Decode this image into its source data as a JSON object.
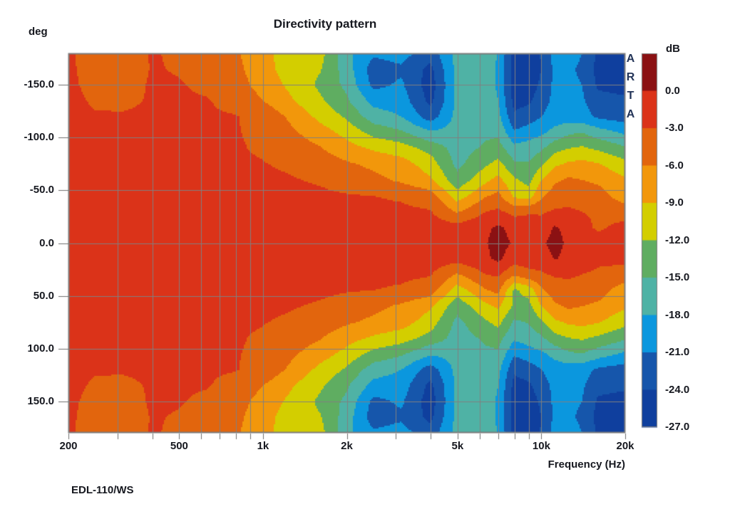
{
  "title": "Directivity pattern",
  "branding": "ARTA",
  "footer_label": "EDL-110/WS",
  "y_axis": {
    "unit_label": "deg",
    "ticks": [
      {
        "value": -150,
        "label": "-150.0"
      },
      {
        "value": -100,
        "label": "-100.0"
      },
      {
        "value": -50,
        "label": "-50.0"
      },
      {
        "value": 0,
        "label": "0.0"
      },
      {
        "value": 50,
        "label": "50.0"
      },
      {
        "value": 100,
        "label": "100.0"
      },
      {
        "value": 150,
        "label": "150.0"
      }
    ]
  },
  "x_axis": {
    "label": "Frequency (Hz)",
    "ticks": [
      {
        "value": 200,
        "label": "200"
      },
      {
        "value": 500,
        "label": "500"
      },
      {
        "value": 1000,
        "label": "1k"
      },
      {
        "value": 2000,
        "label": "2k"
      },
      {
        "value": 5000,
        "label": "5k"
      },
      {
        "value": 10000,
        "label": "10k"
      },
      {
        "value": 20000,
        "label": "20k"
      }
    ]
  },
  "colorbar": {
    "unit_label": "dB",
    "tick_labels": [
      "0.0",
      "-3.0",
      "-6.0",
      "-9.0",
      "-12.0",
      "-15.0",
      "-18.0",
      "-21.0",
      "-24.0",
      "-27.0"
    ],
    "band_colors": [
      "#8B1113",
      "#DB3319",
      "#E2650D",
      "#F2970B",
      "#D3CE00",
      "#5FAD61",
      "#4FB2A5",
      "#0B97DE",
      "#1656AB",
      "#0F3F9E"
    ],
    "band_thresholds_db": [
      0,
      -3,
      -6,
      -9,
      -12,
      -15,
      -18,
      -21,
      -24
    ]
  },
  "chart_data": {
    "type": "heatmap",
    "title": "Directivity pattern",
    "xlabel": "Frequency (Hz)",
    "ylabel": "deg",
    "x_scale": "log",
    "x_range_hz": [
      200,
      20000
    ],
    "y_range_deg": [
      -180,
      180
    ],
    "grid": true,
    "gridline_freqs_hz": [
      300,
      400,
      500,
      600,
      700,
      800,
      900,
      1000,
      2000,
      3000,
      4000,
      5000,
      6000,
      7000,
      8000,
      9000,
      10000
    ],
    "gridline_angles_deg": [
      -150,
      -100,
      -50,
      0,
      50,
      100,
      150
    ],
    "value_unit": "dB",
    "freqs_hz": [
      200,
      250,
      315,
      400,
      500,
      630,
      800,
      1000,
      1250,
      1600,
      2000,
      2500,
      3150,
      4000,
      5000,
      6300,
      7000,
      8000,
      9000,
      10000,
      11200,
      12500,
      14000,
      16000,
      20000
    ],
    "angles_deg": [
      -180,
      -165,
      -150,
      -135,
      -120,
      -105,
      -90,
      -75,
      -60,
      -45,
      -30,
      -15,
      0,
      15,
      30,
      45,
      60,
      75,
      90,
      105,
      120,
      135,
      150,
      165,
      180
    ],
    "values_db": [
      [
        -2.8,
        -3.6,
        -3.7,
        -2.9,
        -3.2,
        -3.9,
        -5.6,
        -8.2,
        -10.4,
        -10.9,
        -17.3,
        -20.5,
        -19.8,
        -22.8,
        -16.8,
        -16.3,
        -18.2,
        -25.0,
        -25.5,
        -23.8,
        -19.8,
        -19.8,
        -21.0,
        -24.5,
        -25.0
      ],
      [
        -2.7,
        -3.7,
        -3.8,
        -2.9,
        -3.1,
        -3.7,
        -5.2,
        -8.0,
        -10.2,
        -11.8,
        -16.5,
        -22.5,
        -21.5,
        -24.8,
        -17.0,
        -16.5,
        -18.4,
        -25.5,
        -26.0,
        -24.0,
        -20.2,
        -20.5,
        -21.5,
        -25.0,
        -25.5
      ],
      [
        -2.6,
        -3.6,
        -3.7,
        -2.8,
        -2.9,
        -3.3,
        -4.6,
        -7.3,
        -9.6,
        -12.6,
        -15.8,
        -21.8,
        -20.5,
        -25.6,
        -17.2,
        -16.5,
        -18.4,
        -25.5,
        -25.5,
        -23.5,
        -20.2,
        -20.3,
        -21.0,
        -24.5,
        -25.0
      ],
      [
        -2.4,
        -3.3,
        -3.4,
        -2.8,
        -2.8,
        -2.9,
        -3.6,
        -6.0,
        -8.6,
        -11.5,
        -14.5,
        -19.0,
        -19.5,
        -24.8,
        -17.2,
        -16.3,
        -18.0,
        -25.0,
        -24.5,
        -22.5,
        -20.0,
        -20.0,
        -20.5,
        -23.0,
        -23.5
      ],
      [
        -2.2,
        -2.8,
        -2.8,
        -2.6,
        -2.7,
        -2.8,
        -2.9,
        -3.8,
        -6.5,
        -9.8,
        -12.5,
        -16.5,
        -18.0,
        -22.5,
        -17.0,
        -16.2,
        -17.0,
        -23.5,
        -22.5,
        -21.0,
        -19.5,
        -19.5,
        -19.8,
        -21.5,
        -22.5
      ],
      [
        -2.0,
        -2.4,
        -2.5,
        -2.4,
        -2.6,
        -2.8,
        -2.9,
        -3.4,
        -5.4,
        -7.6,
        -10.0,
        -13.0,
        -14.5,
        -17.5,
        -16.8,
        -15.6,
        -15.5,
        -20.5,
        -19.5,
        -18.5,
        -17.0,
        -15.5,
        -15.0,
        -16.5,
        -18.5
      ],
      [
        -1.8,
        -2.0,
        -2.1,
        -2.2,
        -2.4,
        -2.6,
        -2.8,
        -3.3,
        -4.2,
        -5.8,
        -7.8,
        -9.4,
        -10.6,
        -13.0,
        -16.3,
        -14.5,
        -13.8,
        -17.0,
        -16.5,
        -15.5,
        -13.0,
        -12.0,
        -11.5,
        -12.5,
        -14.5
      ],
      [
        -1.6,
        -1.8,
        -1.9,
        -2.0,
        -2.1,
        -2.3,
        -2.6,
        -2.9,
        -3.4,
        -4.3,
        -5.6,
        -6.6,
        -7.6,
        -10.5,
        -15.8,
        -12.5,
        -11.0,
        -14.5,
        -14.8,
        -12.5,
        -9.5,
        -8.5,
        -8.0,
        -8.8,
        -11.0
      ],
      [
        -1.4,
        -1.6,
        -1.7,
        -1.8,
        -1.9,
        -2.0,
        -2.2,
        -2.4,
        -2.8,
        -3.3,
        -4.2,
        -5.2,
        -6.5,
        -8.5,
        -14.0,
        -9.7,
        -8.0,
        -11.5,
        -13.0,
        -9.0,
        -6.5,
        -5.5,
        -6.0,
        -6.5,
        -8.5
      ],
      [
        -1.2,
        -1.4,
        -1.5,
        -1.6,
        -1.7,
        -1.8,
        -1.9,
        -2.0,
        -2.2,
        -2.5,
        -2.8,
        -3.0,
        -3.4,
        -4.5,
        -10.5,
        -6.3,
        -5.2,
        -9.5,
        -10.5,
        -6.5,
        -4.5,
        -4.0,
        -4.2,
        -4.8,
        -7.5
      ],
      [
        -1.1,
        -1.2,
        -1.3,
        -1.4,
        -1.4,
        -1.5,
        -1.6,
        -1.7,
        -1.8,
        -2.0,
        -2.1,
        -2.2,
        -2.4,
        -2.8,
        -6.3,
        -3.0,
        -2.4,
        -4.0,
        -3.4,
        -3.4,
        -2.6,
        -2.6,
        -3.0,
        -3.4,
        -4.5
      ],
      [
        -1.0,
        -1.1,
        -1.1,
        -1.2,
        -1.2,
        -1.2,
        -1.3,
        -1.3,
        -1.4,
        -1.5,
        -1.5,
        -1.6,
        -1.6,
        -1.5,
        -1.8,
        -0.5,
        0.4,
        -0.8,
        -1.2,
        -1.5,
        0.3,
        -0.8,
        -2.0,
        -3.5,
        -2.0
      ],
      [
        -1.0,
        -1.0,
        -1.0,
        -1.0,
        -1.0,
        -1.0,
        -1.0,
        -1.0,
        -1.1,
        -1.2,
        -1.2,
        -1.2,
        -1.2,
        -1.1,
        -1.0,
        -0.2,
        1.0,
        -0.3,
        -0.8,
        -0.5,
        1.0,
        -0.5,
        -1.2,
        -1.5,
        -1.2
      ],
      [
        -1.0,
        -1.1,
        -1.1,
        -1.2,
        -1.2,
        -1.2,
        -1.3,
        -1.3,
        -1.4,
        -1.5,
        -1.5,
        -1.6,
        -1.6,
        -1.5,
        -1.8,
        -0.5,
        0.6,
        -1.5,
        -1.2,
        -1.5,
        0.2,
        -0.8,
        -1.8,
        -2.5,
        -2.0
      ],
      [
        -1.1,
        -1.2,
        -1.3,
        -1.4,
        -1.4,
        -1.5,
        -1.6,
        -1.7,
        -1.8,
        -2.0,
        -2.1,
        -2.2,
        -2.4,
        -2.8,
        -6.3,
        -3.0,
        -2.6,
        -5.5,
        -4.0,
        -3.4,
        -2.6,
        -2.6,
        -3.0,
        -3.4,
        -4.5
      ],
      [
        -1.2,
        -1.4,
        -1.5,
        -1.6,
        -1.7,
        -1.8,
        -1.9,
        -2.0,
        -2.2,
        -2.5,
        -2.8,
        -3.0,
        -3.4,
        -4.5,
        -10.5,
        -6.3,
        -5.2,
        -12.5,
        -11.0,
        -6.5,
        -4.5,
        -4.0,
        -4.2,
        -4.8,
        -7.5
      ],
      [
        -1.4,
        -1.6,
        -1.7,
        -1.8,
        -1.9,
        -2.0,
        -2.2,
        -2.4,
        -2.8,
        -3.3,
        -4.2,
        -5.2,
        -6.5,
        -8.5,
        -14.0,
        -9.7,
        -8.5,
        -12.5,
        -13.0,
        -9.0,
        -6.5,
        -5.5,
        -6.0,
        -6.5,
        -8.5
      ],
      [
        -1.6,
        -1.8,
        -1.9,
        -2.0,
        -2.1,
        -2.3,
        -2.6,
        -2.9,
        -3.4,
        -4.3,
        -5.6,
        -6.6,
        -7.6,
        -10.5,
        -15.8,
        -12.5,
        -11.0,
        -15.5,
        -14.8,
        -12.5,
        -9.5,
        -8.5,
        -8.0,
        -8.8,
        -11.0
      ],
      [
        -1.8,
        -2.0,
        -2.1,
        -2.2,
        -2.4,
        -2.6,
        -2.8,
        -3.3,
        -4.2,
        -5.8,
        -7.8,
        -9.4,
        -10.6,
        -13.0,
        -16.3,
        -14.5,
        -13.8,
        -17.5,
        -16.5,
        -15.5,
        -13.0,
        -12.0,
        -11.5,
        -12.5,
        -14.5
      ],
      [
        -2.0,
        -2.4,
        -2.5,
        -2.4,
        -2.6,
        -2.8,
        -2.9,
        -3.4,
        -5.4,
        -7.6,
        -10.0,
        -13.0,
        -14.5,
        -17.5,
        -16.8,
        -15.6,
        -15.5,
        -20.5,
        -19.5,
        -18.5,
        -17.0,
        -15.5,
        -15.0,
        -16.5,
        -18.5
      ],
      [
        -2.2,
        -2.8,
        -2.8,
        -2.6,
        -2.7,
        -2.8,
        -2.9,
        -3.8,
        -6.5,
        -9.8,
        -12.5,
        -16.5,
        -18.0,
        -22.5,
        -17.0,
        -16.2,
        -17.0,
        -23.5,
        -22.5,
        -21.0,
        -19.5,
        -19.5,
        -19.8,
        -21.5,
        -22.5
      ],
      [
        -2.4,
        -3.3,
        -3.4,
        -2.8,
        -2.8,
        -2.9,
        -3.6,
        -6.0,
        -8.6,
        -11.5,
        -14.5,
        -19.0,
        -19.5,
        -24.8,
        -17.2,
        -16.3,
        -18.0,
        -25.0,
        -24.5,
        -22.5,
        -20.0,
        -20.0,
        -20.5,
        -23.0,
        -23.5
      ],
      [
        -2.6,
        -3.6,
        -3.7,
        -2.8,
        -2.9,
        -3.3,
        -4.6,
        -7.3,
        -9.6,
        -12.6,
        -15.8,
        -21.8,
        -20.5,
        -25.6,
        -17.2,
        -16.5,
        -18.4,
        -25.5,
        -25.5,
        -23.5,
        -20.2,
        -20.3,
        -21.0,
        -24.5,
        -25.0
      ],
      [
        -2.7,
        -3.7,
        -3.8,
        -2.9,
        -3.1,
        -3.7,
        -5.2,
        -8.0,
        -10.2,
        -11.8,
        -16.5,
        -22.5,
        -21.5,
        -24.8,
        -17.0,
        -16.5,
        -18.4,
        -25.5,
        -26.0,
        -24.0,
        -20.2,
        -20.5,
        -21.5,
        -25.0,
        -25.5
      ],
      [
        -2.8,
        -3.6,
        -3.7,
        -2.9,
        -3.2,
        -3.9,
        -5.6,
        -8.2,
        -10.4,
        -10.9,
        -17.3,
        -20.5,
        -19.8,
        -22.8,
        -16.8,
        -16.3,
        -18.2,
        -25.0,
        -25.5,
        -23.8,
        -19.8,
        -19.8,
        -21.0,
        -24.5,
        -25.0
      ]
    ]
  }
}
